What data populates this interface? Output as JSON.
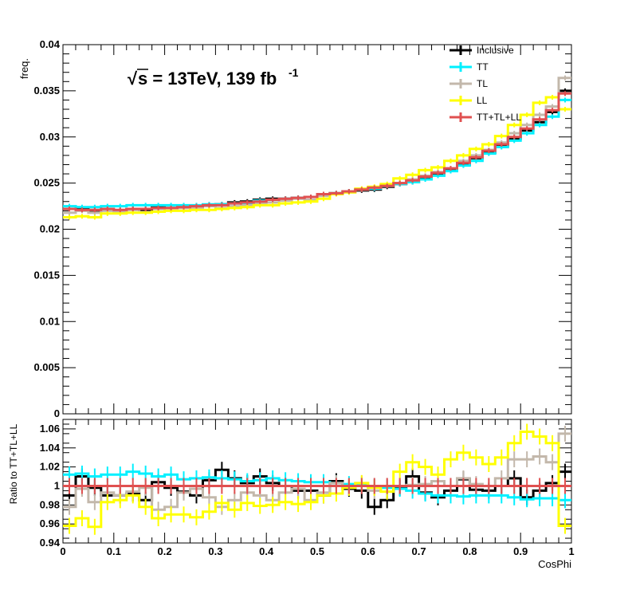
{
  "chart_data": [
    {
      "type": "line",
      "subtype": "step-histogram",
      "title": "",
      "annotation": {
        "sqrt_symbol": "√",
        "text": "s = 13TeV, 139 fb",
        "superscript": "-1"
      },
      "xlabel": "",
      "ylabel": "freq.",
      "xlim": [
        0,
        1
      ],
      "ylim": [
        0,
        0.04
      ],
      "yticks": [
        "0",
        "0.005",
        "0.01",
        "0.015",
        "0.02",
        "0.025",
        "0.03",
        "0.035",
        "0.04"
      ],
      "legend_placement": "top-right",
      "x_bin_edges": [
        0,
        0.025,
        0.05,
        0.075,
        0.1,
        0.125,
        0.15,
        0.175,
        0.2,
        0.225,
        0.25,
        0.275,
        0.3,
        0.325,
        0.35,
        0.375,
        0.4,
        0.425,
        0.45,
        0.475,
        0.5,
        0.525,
        0.55,
        0.575,
        0.6,
        0.625,
        0.65,
        0.675,
        0.7,
        0.725,
        0.75,
        0.775,
        0.8,
        0.825,
        0.85,
        0.875,
        0.9,
        0.925,
        0.95,
        0.975,
        1.0
      ],
      "series": [
        {
          "name": "Inclusive",
          "color": "#000000",
          "values": [
            0.0222,
            0.0222,
            0.022,
            0.0221,
            0.022,
            0.0222,
            0.0221,
            0.0224,
            0.0223,
            0.0225,
            0.0224,
            0.0226,
            0.0227,
            0.0229,
            0.023,
            0.0232,
            0.0233,
            0.0233,
            0.0234,
            0.0235,
            0.0238,
            0.0239,
            0.0241,
            0.0242,
            0.0243,
            0.0246,
            0.0249,
            0.0251,
            0.0256,
            0.0259,
            0.0265,
            0.027,
            0.0277,
            0.0283,
            0.0291,
            0.0298,
            0.0307,
            0.0316,
            0.0327,
            0.035
          ]
        },
        {
          "name": "TT",
          "color": "#00f0ff",
          "values": [
            0.0225,
            0.0224,
            0.0224,
            0.0225,
            0.0225,
            0.0226,
            0.0226,
            0.0226,
            0.0226,
            0.0226,
            0.0226,
            0.0227,
            0.0227,
            0.0228,
            0.0228,
            0.0231,
            0.0232,
            0.0233,
            0.0234,
            0.0235,
            0.0238,
            0.0239,
            0.0241,
            0.0243,
            0.0244,
            0.0247,
            0.0249,
            0.0251,
            0.0254,
            0.0258,
            0.0263,
            0.0269,
            0.0274,
            0.0282,
            0.0289,
            0.0296,
            0.0304,
            0.0313,
            0.0322,
            0.034
          ]
        },
        {
          "name": "TL",
          "color": "#c3b8ab",
          "values": [
            0.0218,
            0.022,
            0.0218,
            0.022,
            0.0219,
            0.0221,
            0.0222,
            0.0222,
            0.0223,
            0.0223,
            0.0224,
            0.0225,
            0.0223,
            0.0225,
            0.0226,
            0.0228,
            0.0229,
            0.0231,
            0.0233,
            0.0232,
            0.0236,
            0.0239,
            0.024,
            0.0243,
            0.0245,
            0.0247,
            0.025,
            0.0254,
            0.0258,
            0.0262,
            0.0266,
            0.0274,
            0.028,
            0.0286,
            0.0294,
            0.0304,
            0.0313,
            0.0324,
            0.0333,
            0.0364
          ]
        },
        {
          "name": "LL",
          "color": "#ffff00",
          "values": [
            0.0213,
            0.0214,
            0.0213,
            0.0217,
            0.0217,
            0.0218,
            0.0218,
            0.0219,
            0.022,
            0.022,
            0.0221,
            0.0221,
            0.0222,
            0.0223,
            0.0224,
            0.0226,
            0.0226,
            0.0228,
            0.0229,
            0.023,
            0.0233,
            0.0238,
            0.024,
            0.0244,
            0.0246,
            0.0249,
            0.0255,
            0.0259,
            0.0264,
            0.0267,
            0.0274,
            0.028,
            0.0287,
            0.0292,
            0.0301,
            0.0313,
            0.0324,
            0.0337,
            0.0343,
            0.033
          ]
        },
        {
          "name": "TT+TL+LL",
          "color": "#e05050",
          "values": [
            0.0222,
            0.0221,
            0.0221,
            0.0222,
            0.0221,
            0.0222,
            0.0222,
            0.0223,
            0.0223,
            0.0224,
            0.0225,
            0.0226,
            0.0226,
            0.0228,
            0.0229,
            0.023,
            0.0232,
            0.0233,
            0.0234,
            0.0235,
            0.0238,
            0.0239,
            0.0241,
            0.0243,
            0.0245,
            0.0247,
            0.025,
            0.0253,
            0.0257,
            0.0261,
            0.0266,
            0.0272,
            0.0278,
            0.0285,
            0.0292,
            0.03,
            0.0309,
            0.0319,
            0.0329,
            0.0347
          ]
        }
      ]
    },
    {
      "type": "line",
      "subtype": "step-histogram-ratio",
      "xlabel": "CosPhi",
      "ylabel": "Ratio to TT+TL+LL",
      "xlim": [
        0,
        1
      ],
      "ylim": [
        0.94,
        1.07
      ],
      "xticks": [
        "0",
        "0.1",
        "0.2",
        "0.3",
        "0.4",
        "0.5",
        "0.6",
        "0.7",
        "0.8",
        "0.9",
        "1"
      ],
      "yticks": [
        "0.94",
        "0.96",
        "0.98",
        "1",
        "1.02",
        "1.04",
        "1.06"
      ],
      "reference_line": 1.0,
      "x_bin_edges": [
        0,
        0.025,
        0.05,
        0.075,
        0.1,
        0.125,
        0.15,
        0.175,
        0.2,
        0.225,
        0.25,
        0.275,
        0.3,
        0.325,
        0.35,
        0.375,
        0.4,
        0.425,
        0.45,
        0.475,
        0.5,
        0.525,
        0.55,
        0.575,
        0.6,
        0.625,
        0.65,
        0.675,
        0.7,
        0.725,
        0.75,
        0.775,
        0.8,
        0.825,
        0.85,
        0.875,
        0.9,
        0.925,
        0.95,
        0.975,
        1.0
      ],
      "series": [
        {
          "name": "Inclusive",
          "color": "#000000",
          "values": [
            0.99,
            1.01,
            0.998,
            0.99,
            0.99,
            0.992,
            0.985,
            1.004,
            0.998,
            0.994,
            0.99,
            1.006,
            1.017,
            1.008,
            1.003,
            1.01,
            1.003,
            1.0,
            0.995,
            0.995,
            0.99,
            1.005,
            0.997,
            0.995,
            0.978,
            0.985,
            0.998,
            1.01,
            0.993,
            0.988,
            0.995,
            1.007,
            0.996,
            0.995,
            1.0,
            1.008,
            0.988,
            0.995,
            1.003,
            1.015
          ]
        },
        {
          "name": "TT",
          "color": "#00f0ff",
          "values": [
            1.012,
            1.013,
            1.01,
            1.012,
            1.012,
            1.015,
            1.013,
            1.01,
            1.012,
            1.007,
            1.008,
            1.009,
            1.008,
            1.007,
            1.005,
            1.006,
            1.008,
            1.006,
            1.005,
            1.004,
            1.004,
            1.003,
            1.002,
            1.001,
            0.999,
            0.998,
            0.997,
            0.995,
            0.992,
            0.99,
            0.99,
            0.989,
            0.99,
            0.99,
            0.99,
            0.988,
            0.986,
            0.987,
            0.987,
            0.985
          ]
        },
        {
          "name": "TL",
          "color": "#c3b8ab",
          "values": [
            0.978,
            0.997,
            0.983,
            0.993,
            0.99,
            0.994,
            0.998,
            0.975,
            0.978,
            0.993,
            0.997,
            0.988,
            0.978,
            0.985,
            0.993,
            0.99,
            0.985,
            0.993,
            0.997,
            0.985,
            0.993,
            1.003,
            0.999,
            1.003,
            0.995,
            1.0,
            1.0,
            1.001,
            1.002,
            1.005,
            1.0,
            1.008,
            1.002,
            1.0,
            1.008,
            1.028,
            1.028,
            1.031,
            1.025,
            1.055
          ]
        },
        {
          "name": "LL",
          "color": "#ffff00",
          "values": [
            0.958,
            0.966,
            0.957,
            0.983,
            0.985,
            0.99,
            0.978,
            0.966,
            0.97,
            0.97,
            0.967,
            0.973,
            0.982,
            0.975,
            0.982,
            0.979,
            0.98,
            0.983,
            0.981,
            0.983,
            0.99,
            0.992,
            0.998,
            1.003,
            0.998,
            0.994,
            1.015,
            1.025,
            1.02,
            1.012,
            1.028,
            1.035,
            1.03,
            1.023,
            1.03,
            1.045,
            1.057,
            1.052,
            1.045,
            0.958
          ]
        },
        {
          "name": "TT+TL+LL",
          "color": "#e05050",
          "values": [
            1,
            1,
            1,
            1,
            1,
            1,
            1,
            1,
            1,
            1,
            1,
            1,
            1,
            1,
            1,
            1,
            1,
            1,
            1,
            1,
            1,
            1,
            1,
            1,
            1,
            1,
            1,
            1,
            1,
            1,
            1,
            1,
            1,
            1,
            1,
            1,
            1,
            1,
            1,
            1
          ]
        }
      ]
    }
  ]
}
